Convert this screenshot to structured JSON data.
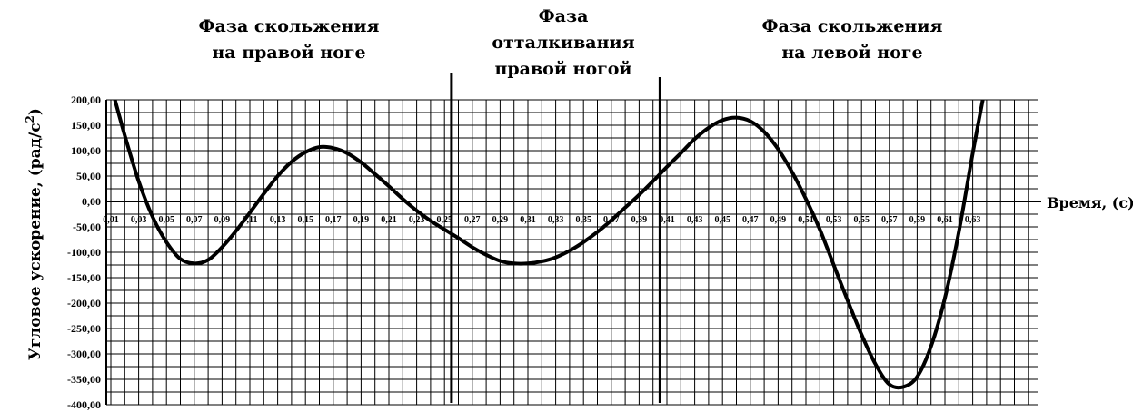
{
  "chart_data": {
    "type": "line",
    "title": "",
    "xlabel": "Время, (с)",
    "ylabel_prefix": "Угловое ускорение, (рад/с",
    "ylabel_sup": "2",
    "ylabel_suffix": ")",
    "ylim": [
      -400,
      200
    ],
    "ytick_step": 50,
    "grid": true,
    "legend": "none",
    "yticks": [
      "200,00",
      "150,00",
      "100,00",
      "50,00",
      "0,00",
      "-50,00",
      "-100,00",
      "-150,00",
      "-200,00",
      "-250,00",
      "-300,00",
      "-350,00",
      "-400,00"
    ],
    "xticks": [
      "0,01",
      "0,03",
      "0,05",
      "0,07",
      "0,09",
      "0,11",
      "0,13",
      "0,15",
      "0,17",
      "0,19",
      "0,21",
      "0,23",
      "0,25",
      "0,27",
      "0,29",
      "0,31",
      "0,33",
      "0,35",
      "0,37",
      "0,39",
      "0,41",
      "0,43",
      "0,45",
      "0,47",
      "0,49",
      "0,51",
      "0,53",
      "0,55",
      "0,57",
      "0,59",
      "0,61",
      "0,63"
    ],
    "phase_labels": [
      {
        "lines": [
          "Фаза скольжения",
          "на правой ноге"
        ]
      },
      {
        "lines": [
          "Фаза",
          "отталкивания",
          "правой ногой"
        ]
      },
      {
        "lines": [
          "Фаза скольжения",
          "на левой ноге"
        ]
      }
    ],
    "phase_boundaries_x": [
      0.255,
      0.405
    ],
    "series": [
      {
        "color": "#000000",
        "x": [
          0.01,
          0.02,
          0.03,
          0.04,
          0.05,
          0.06,
          0.07,
          0.08,
          0.09,
          0.1,
          0.11,
          0.12,
          0.13,
          0.14,
          0.15,
          0.16,
          0.17,
          0.18,
          0.19,
          0.2,
          0.21,
          0.22,
          0.23,
          0.24,
          0.25,
          0.26,
          0.27,
          0.28,
          0.29,
          0.3,
          0.31,
          0.32,
          0.33,
          0.34,
          0.35,
          0.36,
          0.37,
          0.38,
          0.39,
          0.4,
          0.41,
          0.42,
          0.43,
          0.44,
          0.45,
          0.46,
          0.47,
          0.48,
          0.49,
          0.5,
          0.51,
          0.52,
          0.53,
          0.54,
          0.55,
          0.56,
          0.57,
          0.58,
          0.59,
          0.6,
          0.61,
          0.62,
          0.63,
          0.64
        ],
        "y": [
          230,
          130,
          40,
          -30,
          -80,
          -113,
          -122,
          -115,
          -90,
          -58,
          -22,
          15,
          50,
          78,
          97,
          107,
          105,
          95,
          77,
          54,
          30,
          5,
          -18,
          -38,
          -55,
          -72,
          -90,
          -105,
          -117,
          -122,
          -122,
          -118,
          -110,
          -97,
          -80,
          -60,
          -37,
          -12,
          13,
          40,
          68,
          95,
          123,
          145,
          160,
          165,
          158,
          137,
          103,
          58,
          5,
          -55,
          -125,
          -195,
          -262,
          -320,
          -360,
          -365,
          -345,
          -285,
          -190,
          -60,
          95,
          240
        ]
      }
    ]
  }
}
